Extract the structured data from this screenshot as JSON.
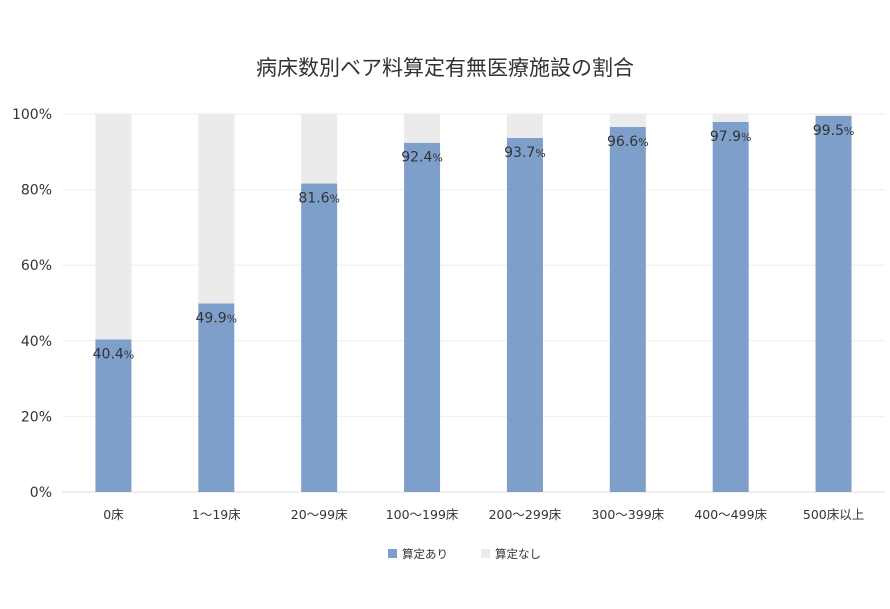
{
  "chart_data": {
    "type": "bar",
    "stacked": true,
    "percent_stacked": true,
    "title": "病床数別ベア料算定有無医療施設の割合",
    "xlabel": "",
    "ylabel": "",
    "ylim": [
      0,
      100
    ],
    "yticks": [
      "0%",
      "20%",
      "40%",
      "60%",
      "80%",
      "100%"
    ],
    "grid": true,
    "legend_position": "bottom",
    "categories": [
      "0床",
      "1〜19床",
      "20〜99床",
      "100〜199床",
      "200〜299床",
      "300〜399床",
      "400〜499床",
      "500床以上"
    ],
    "series": [
      {
        "name": "算定あり",
        "color": "#7f9fcb",
        "values": [
          40.4,
          49.9,
          81.6,
          92.4,
          93.7,
          96.6,
          97.9,
          99.5
        ]
      },
      {
        "name": "算定なし",
        "color": "#ebebeb",
        "values": [
          59.6,
          50.1,
          18.4,
          7.6,
          6.3,
          3.4,
          2.1,
          0.5
        ]
      }
    ],
    "data_labels": {
      "series": "算定あり",
      "texts": [
        "40.4",
        "49.9",
        "81.6",
        "92.4",
        "93.7",
        "96.6",
        "97.9",
        "99.5"
      ],
      "suffix": "%"
    }
  }
}
